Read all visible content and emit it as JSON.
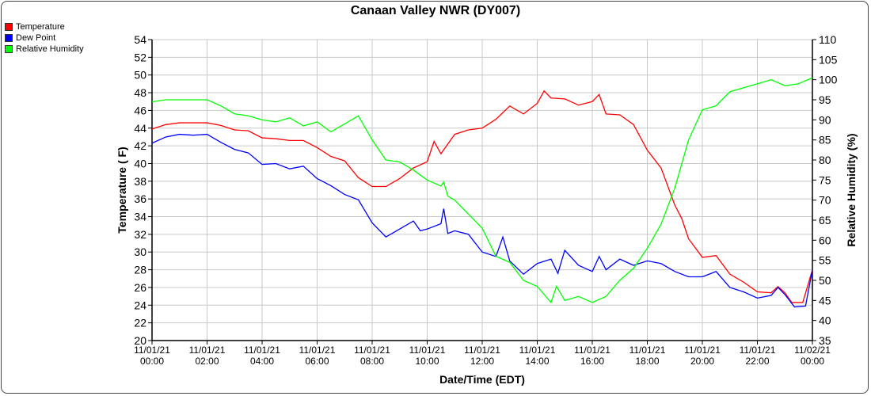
{
  "chart_data": {
    "type": "line",
    "title": "Canaan Valley NWR (DY007)",
    "xlabel": "Date/Time (EDT)",
    "ylabel": "Temperature ( F)",
    "y2label": "Relative Humidity (%)",
    "ylim": [
      20,
      54
    ],
    "y2lim": [
      35,
      110
    ],
    "xlim_hours": [
      0,
      24
    ],
    "yticks": [
      "20",
      "22",
      "24",
      "26",
      "28",
      "30",
      "32",
      "34",
      "36",
      "38",
      "40",
      "42",
      "44",
      "46",
      "48",
      "50",
      "52",
      "54"
    ],
    "y2ticks": [
      "35",
      "40",
      "45",
      "50",
      "55",
      "60",
      "65",
      "70",
      "75",
      "80",
      "85",
      "90",
      "95",
      "100",
      "105",
      "110"
    ],
    "xticks": [
      {
        "date": "11/01/21",
        "time": "00:00"
      },
      {
        "date": "11/01/21",
        "time": "02:00"
      },
      {
        "date": "11/01/21",
        "time": "04:00"
      },
      {
        "date": "11/01/21",
        "time": "06:00"
      },
      {
        "date": "11/01/21",
        "time": "08:00"
      },
      {
        "date": "11/01/21",
        "time": "10:00"
      },
      {
        "date": "11/01/21",
        "time": "12:00"
      },
      {
        "date": "11/01/21",
        "time": "14:00"
      },
      {
        "date": "11/01/21",
        "time": "16:00"
      },
      {
        "date": "11/01/21",
        "time": "18:00"
      },
      {
        "date": "11/01/21",
        "time": "20:00"
      },
      {
        "date": "11/01/21",
        "time": "22:00"
      },
      {
        "date": "11/02/21",
        "time": "00:00"
      }
    ],
    "grid": true,
    "legend_position": "top-left",
    "series": [
      {
        "name": "Temperature",
        "color": "#ff0000",
        "axis": "left",
        "points": [
          [
            0,
            43.9
          ],
          [
            0.5,
            44.4
          ],
          [
            1,
            44.6
          ],
          [
            1.5,
            44.6
          ],
          [
            2,
            44.6
          ],
          [
            2.5,
            44.3
          ],
          [
            3,
            43.8
          ],
          [
            3.5,
            43.7
          ],
          [
            4,
            42.9
          ],
          [
            4.5,
            42.8
          ],
          [
            5,
            42.6
          ],
          [
            5.5,
            42.6
          ],
          [
            6,
            41.8
          ],
          [
            6.5,
            40.8
          ],
          [
            7,
            40.3
          ],
          [
            7.5,
            38.4
          ],
          [
            8,
            37.4
          ],
          [
            8.5,
            37.4
          ],
          [
            9,
            38.3
          ],
          [
            9.5,
            39.5
          ],
          [
            10,
            40.2
          ],
          [
            10.25,
            42.5
          ],
          [
            10.5,
            41.1
          ],
          [
            11,
            43.3
          ],
          [
            11.5,
            43.8
          ],
          [
            12,
            44.0
          ],
          [
            12.5,
            45.0
          ],
          [
            13,
            46.5
          ],
          [
            13.5,
            45.6
          ],
          [
            14,
            46.8
          ],
          [
            14.25,
            48.2
          ],
          [
            14.5,
            47.4
          ],
          [
            15,
            47.3
          ],
          [
            15.5,
            46.6
          ],
          [
            16,
            47.0
          ],
          [
            16.25,
            47.8
          ],
          [
            16.5,
            45.6
          ],
          [
            17,
            45.5
          ],
          [
            17.5,
            44.4
          ],
          [
            18,
            41.5
          ],
          [
            18.5,
            39.5
          ],
          [
            19,
            35.3
          ],
          [
            19.25,
            33.8
          ],
          [
            19.5,
            31.5
          ],
          [
            20,
            29.4
          ],
          [
            20.5,
            29.6
          ],
          [
            21,
            27.5
          ],
          [
            21.5,
            26.6
          ],
          [
            22,
            25.5
          ],
          [
            22.5,
            25.4
          ],
          [
            22.75,
            26.1
          ],
          [
            23,
            25.4
          ],
          [
            23.25,
            24.3
          ],
          [
            23.65,
            24.3
          ],
          [
            24,
            28.0
          ]
        ]
      },
      {
        "name": "Dew Point",
        "color": "#0000ff",
        "axis": "left",
        "points": [
          [
            0,
            42.3
          ],
          [
            0.5,
            43.0
          ],
          [
            1,
            43.3
          ],
          [
            1.5,
            43.2
          ],
          [
            2,
            43.3
          ],
          [
            2.5,
            42.4
          ],
          [
            3,
            41.6
          ],
          [
            3.5,
            41.2
          ],
          [
            4,
            39.9
          ],
          [
            4.5,
            40.0
          ],
          [
            5,
            39.4
          ],
          [
            5.5,
            39.7
          ],
          [
            6,
            38.3
          ],
          [
            6.5,
            37.5
          ],
          [
            7,
            36.5
          ],
          [
            7.5,
            35.9
          ],
          [
            8,
            33.3
          ],
          [
            8.5,
            31.7
          ],
          [
            9,
            32.6
          ],
          [
            9.5,
            33.5
          ],
          [
            9.75,
            32.4
          ],
          [
            10,
            32.6
          ],
          [
            10.5,
            33.2
          ],
          [
            10.6,
            34.9
          ],
          [
            10.75,
            32.1
          ],
          [
            11,
            32.4
          ],
          [
            11.5,
            32.0
          ],
          [
            12,
            30.0
          ],
          [
            12.5,
            29.5
          ],
          [
            12.75,
            31.7
          ],
          [
            13,
            29.0
          ],
          [
            13.5,
            27.5
          ],
          [
            14,
            28.7
          ],
          [
            14.5,
            29.2
          ],
          [
            14.75,
            27.6
          ],
          [
            15,
            30.2
          ],
          [
            15.5,
            28.5
          ],
          [
            16,
            27.8
          ],
          [
            16.25,
            29.5
          ],
          [
            16.5,
            28.0
          ],
          [
            17,
            29.2
          ],
          [
            17.5,
            28.5
          ],
          [
            18,
            29.0
          ],
          [
            18.5,
            28.7
          ],
          [
            19,
            27.8
          ],
          [
            19.5,
            27.2
          ],
          [
            20,
            27.2
          ],
          [
            20.5,
            27.8
          ],
          [
            21,
            26.0
          ],
          [
            21.5,
            25.5
          ],
          [
            22,
            24.8
          ],
          [
            22.5,
            25.1
          ],
          [
            22.75,
            26.0
          ],
          [
            23,
            25.2
          ],
          [
            23.35,
            23.8
          ],
          [
            23.75,
            23.9
          ],
          [
            24,
            28.0
          ]
        ]
      },
      {
        "name": "Relative Humidity",
        "color": "#00ff00",
        "axis": "right",
        "points": [
          [
            0,
            94.5
          ],
          [
            0.5,
            95
          ],
          [
            1,
            95
          ],
          [
            1.5,
            95
          ],
          [
            2,
            95
          ],
          [
            2.5,
            93.5
          ],
          [
            3,
            91.5
          ],
          [
            3.5,
            91
          ],
          [
            4,
            90
          ],
          [
            4.5,
            89.5
          ],
          [
            5,
            90.5
          ],
          [
            5.5,
            88.5
          ],
          [
            6,
            89.5
          ],
          [
            6.5,
            87
          ],
          [
            7,
            89
          ],
          [
            7.5,
            91
          ],
          [
            8,
            85
          ],
          [
            8.5,
            80
          ],
          [
            9,
            79.5
          ],
          [
            9.5,
            77.5
          ],
          [
            10,
            75
          ],
          [
            10.5,
            73.5
          ],
          [
            10.6,
            74.5
          ],
          [
            10.75,
            71
          ],
          [
            11,
            70
          ],
          [
            11.5,
            66.5
          ],
          [
            12,
            63
          ],
          [
            12.5,
            56
          ],
          [
            13,
            54.5
          ],
          [
            13.5,
            50
          ],
          [
            14,
            48.5
          ],
          [
            14.5,
            44.5
          ],
          [
            14.7,
            48.5
          ],
          [
            15,
            45
          ],
          [
            15.5,
            46
          ],
          [
            16,
            44.5
          ],
          [
            16.5,
            46
          ],
          [
            17,
            50
          ],
          [
            17.5,
            53
          ],
          [
            18,
            58
          ],
          [
            18.5,
            64
          ],
          [
            19,
            73
          ],
          [
            19.5,
            85
          ],
          [
            20,
            92.5
          ],
          [
            20.5,
            93.5
          ],
          [
            21,
            97
          ],
          [
            21.5,
            98
          ],
          [
            22,
            99
          ],
          [
            22.5,
            100
          ],
          [
            23,
            98.5
          ],
          [
            23.5,
            99
          ],
          [
            24,
            100.5
          ]
        ]
      }
    ]
  }
}
